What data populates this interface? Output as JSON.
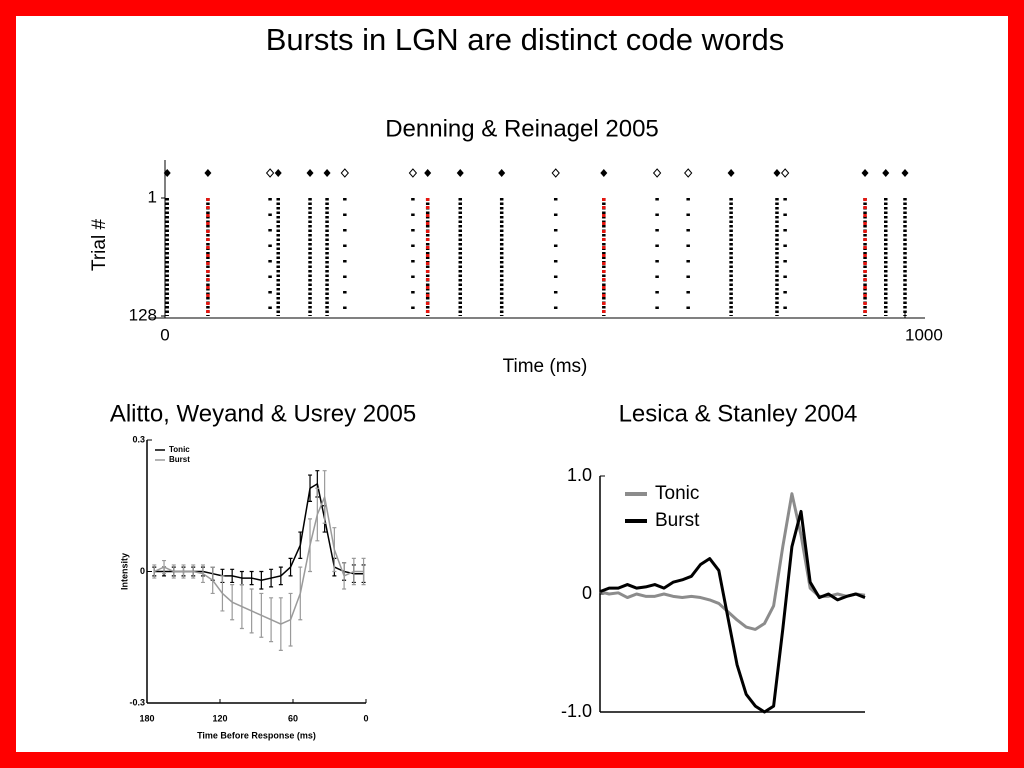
{
  "slide": {
    "title": "Bursts in LGN are distinct code words"
  },
  "chart_data": [
    {
      "type": "raster",
      "title": "Denning & Reinagel 2005",
      "xlabel": "Time (ms)",
      "ylabel": "Trial #",
      "xlim": [
        0,
        1000
      ],
      "xticks": [
        0,
        1000
      ],
      "ylim": [
        128,
        1
      ],
      "yticks": [
        1,
        128
      ],
      "spike_columns": [
        3,
        58,
        142,
        153,
        196,
        219,
        243,
        335,
        355,
        399,
        455,
        528,
        593,
        665,
        707,
        765,
        827,
        838,
        946,
        974,
        1000
      ],
      "burst_columns": [
        58,
        355,
        593,
        946
      ],
      "filled_markers": [
        3,
        58,
        153,
        196,
        219,
        355,
        399,
        455,
        593,
        765,
        827,
        946,
        974,
        1000
      ],
      "open_markers": [
        142,
        243,
        335,
        528,
        665,
        707,
        838
      ],
      "spike_color": "#000000",
      "burst_color": "#e8150f"
    },
    {
      "type": "line",
      "title": "Alitto, Weyand & Usrey 2005",
      "xlabel": "Time Before Response (ms)",
      "ylabel": "Intensity",
      "x": [
        174,
        166,
        158,
        150,
        142,
        134,
        126,
        118,
        110,
        102,
        94,
        86,
        78,
        70,
        62,
        54,
        46,
        40,
        34,
        26,
        18,
        10,
        2
      ],
      "xlim": [
        180,
        0
      ],
      "xticks": [
        180,
        120,
        60,
        0
      ],
      "ylim": [
        -0.3,
        0.3
      ],
      "yticks": [
        -0.3,
        0,
        0.3
      ],
      "legend": "upper left",
      "series": [
        {
          "name": "Tonic",
          "color": "#000000",
          "values": [
            0,
            0,
            0,
            0,
            0,
            0,
            -0.005,
            -0.01,
            -0.01,
            -0.015,
            -0.015,
            -0.02,
            -0.015,
            -0.01,
            0.01,
            0.06,
            0.19,
            0.2,
            0.12,
            0.01,
            0,
            -0.005,
            -0.005
          ],
          "errors": [
            0.01,
            0.01,
            0.01,
            0.01,
            0.01,
            0.01,
            0.015,
            0.015,
            0.015,
            0.015,
            0.015,
            0.02,
            0.02,
            0.02,
            0.02,
            0.03,
            0.03,
            0.03,
            0.03,
            0.02,
            0.02,
            0.02,
            0.02
          ]
        },
        {
          "name": "Burst",
          "color": "#9a9a9a",
          "values": [
            0,
            0.01,
            0,
            0,
            0,
            -0.005,
            -0.02,
            -0.05,
            -0.07,
            -0.08,
            -0.09,
            -0.1,
            -0.11,
            -0.12,
            -0.11,
            -0.05,
            0.06,
            0.13,
            0.17,
            0.05,
            -0.01,
            0,
            0
          ],
          "errors": [
            0.015,
            0.015,
            0.015,
            0.015,
            0.015,
            0.02,
            0.03,
            0.04,
            0.04,
            0.05,
            0.05,
            0.05,
            0.05,
            0.06,
            0.06,
            0.06,
            0.06,
            0.06,
            0.06,
            0.05,
            0.03,
            0.03,
            0.03
          ]
        }
      ]
    },
    {
      "type": "line",
      "title": "Lesica & Stanley 2004",
      "ylim": [
        -1,
        1
      ],
      "yticks": [
        {
          "value": -1,
          "label": "-1.0"
        },
        0,
        {
          "value": 1,
          "label": "1.0"
        }
      ],
      "legend": "upper left",
      "series": [
        {
          "name": "Tonic",
          "color": "#8c8c8c",
          "values": [
            0.02,
            0.0,
            0.01,
            -0.03,
            0.0,
            -0.02,
            -0.02,
            0.0,
            -0.02,
            -0.03,
            -0.02,
            -0.03,
            -0.05,
            -0.08,
            -0.15,
            -0.22,
            -0.28,
            -0.3,
            -0.25,
            -0.1,
            0.4,
            0.85,
            0.5,
            0.05,
            -0.02,
            -0.02,
            0.0,
            -0.02,
            0.0,
            -0.01
          ]
        },
        {
          "name": "Burst",
          "color": "#000000",
          "values": [
            0.02,
            0.05,
            0.05,
            0.08,
            0.05,
            0.06,
            0.08,
            0.05,
            0.1,
            0.12,
            0.15,
            0.25,
            0.3,
            0.2,
            -0.2,
            -0.6,
            -0.85,
            -0.95,
            -1.0,
            -0.95,
            -0.3,
            0.4,
            0.7,
            0.1,
            -0.03,
            0.0,
            -0.05,
            -0.02,
            0.0,
            -0.03
          ]
        }
      ]
    }
  ]
}
